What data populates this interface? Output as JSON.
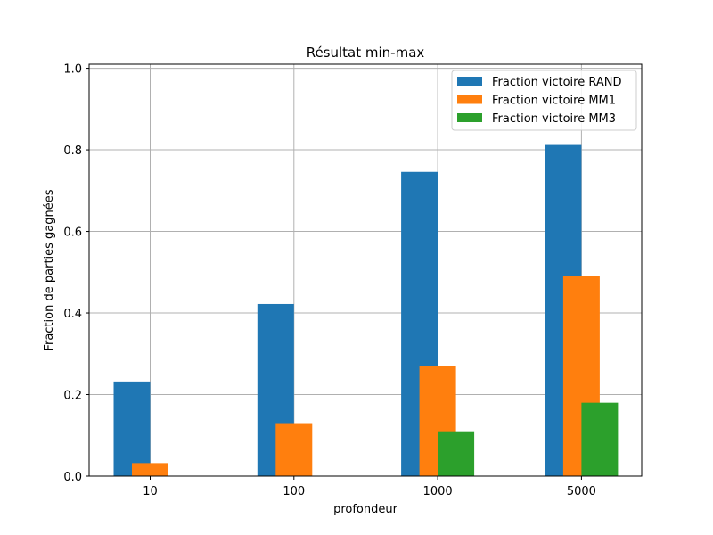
{
  "chart_data": {
    "type": "bar",
    "title": "Résultat min-max",
    "xlabel": "profondeur",
    "ylabel": "Fraction de parties gagnées",
    "categories": [
      "10",
      "100",
      "1000",
      "5000"
    ],
    "series": [
      {
        "name": "Fraction victoire RAND",
        "color": "#1f77b4",
        "values": [
          0.232,
          0.422,
          0.746,
          0.812
        ]
      },
      {
        "name": "Fraction victoire MM1",
        "color": "#ff7f0e",
        "values": [
          0.032,
          0.13,
          0.27,
          0.49
        ]
      },
      {
        "name": "Fraction victoire MM3",
        "color": "#2ca02c",
        "values": [
          0.0,
          0.0,
          0.11,
          0.18
        ]
      }
    ],
    "ylim": [
      0,
      1.01
    ],
    "yticks": [
      "0.0",
      "0.2",
      "0.4",
      "0.6",
      "0.8",
      "1.0"
    ],
    "grid": true,
    "legend_position": "top-right"
  }
}
